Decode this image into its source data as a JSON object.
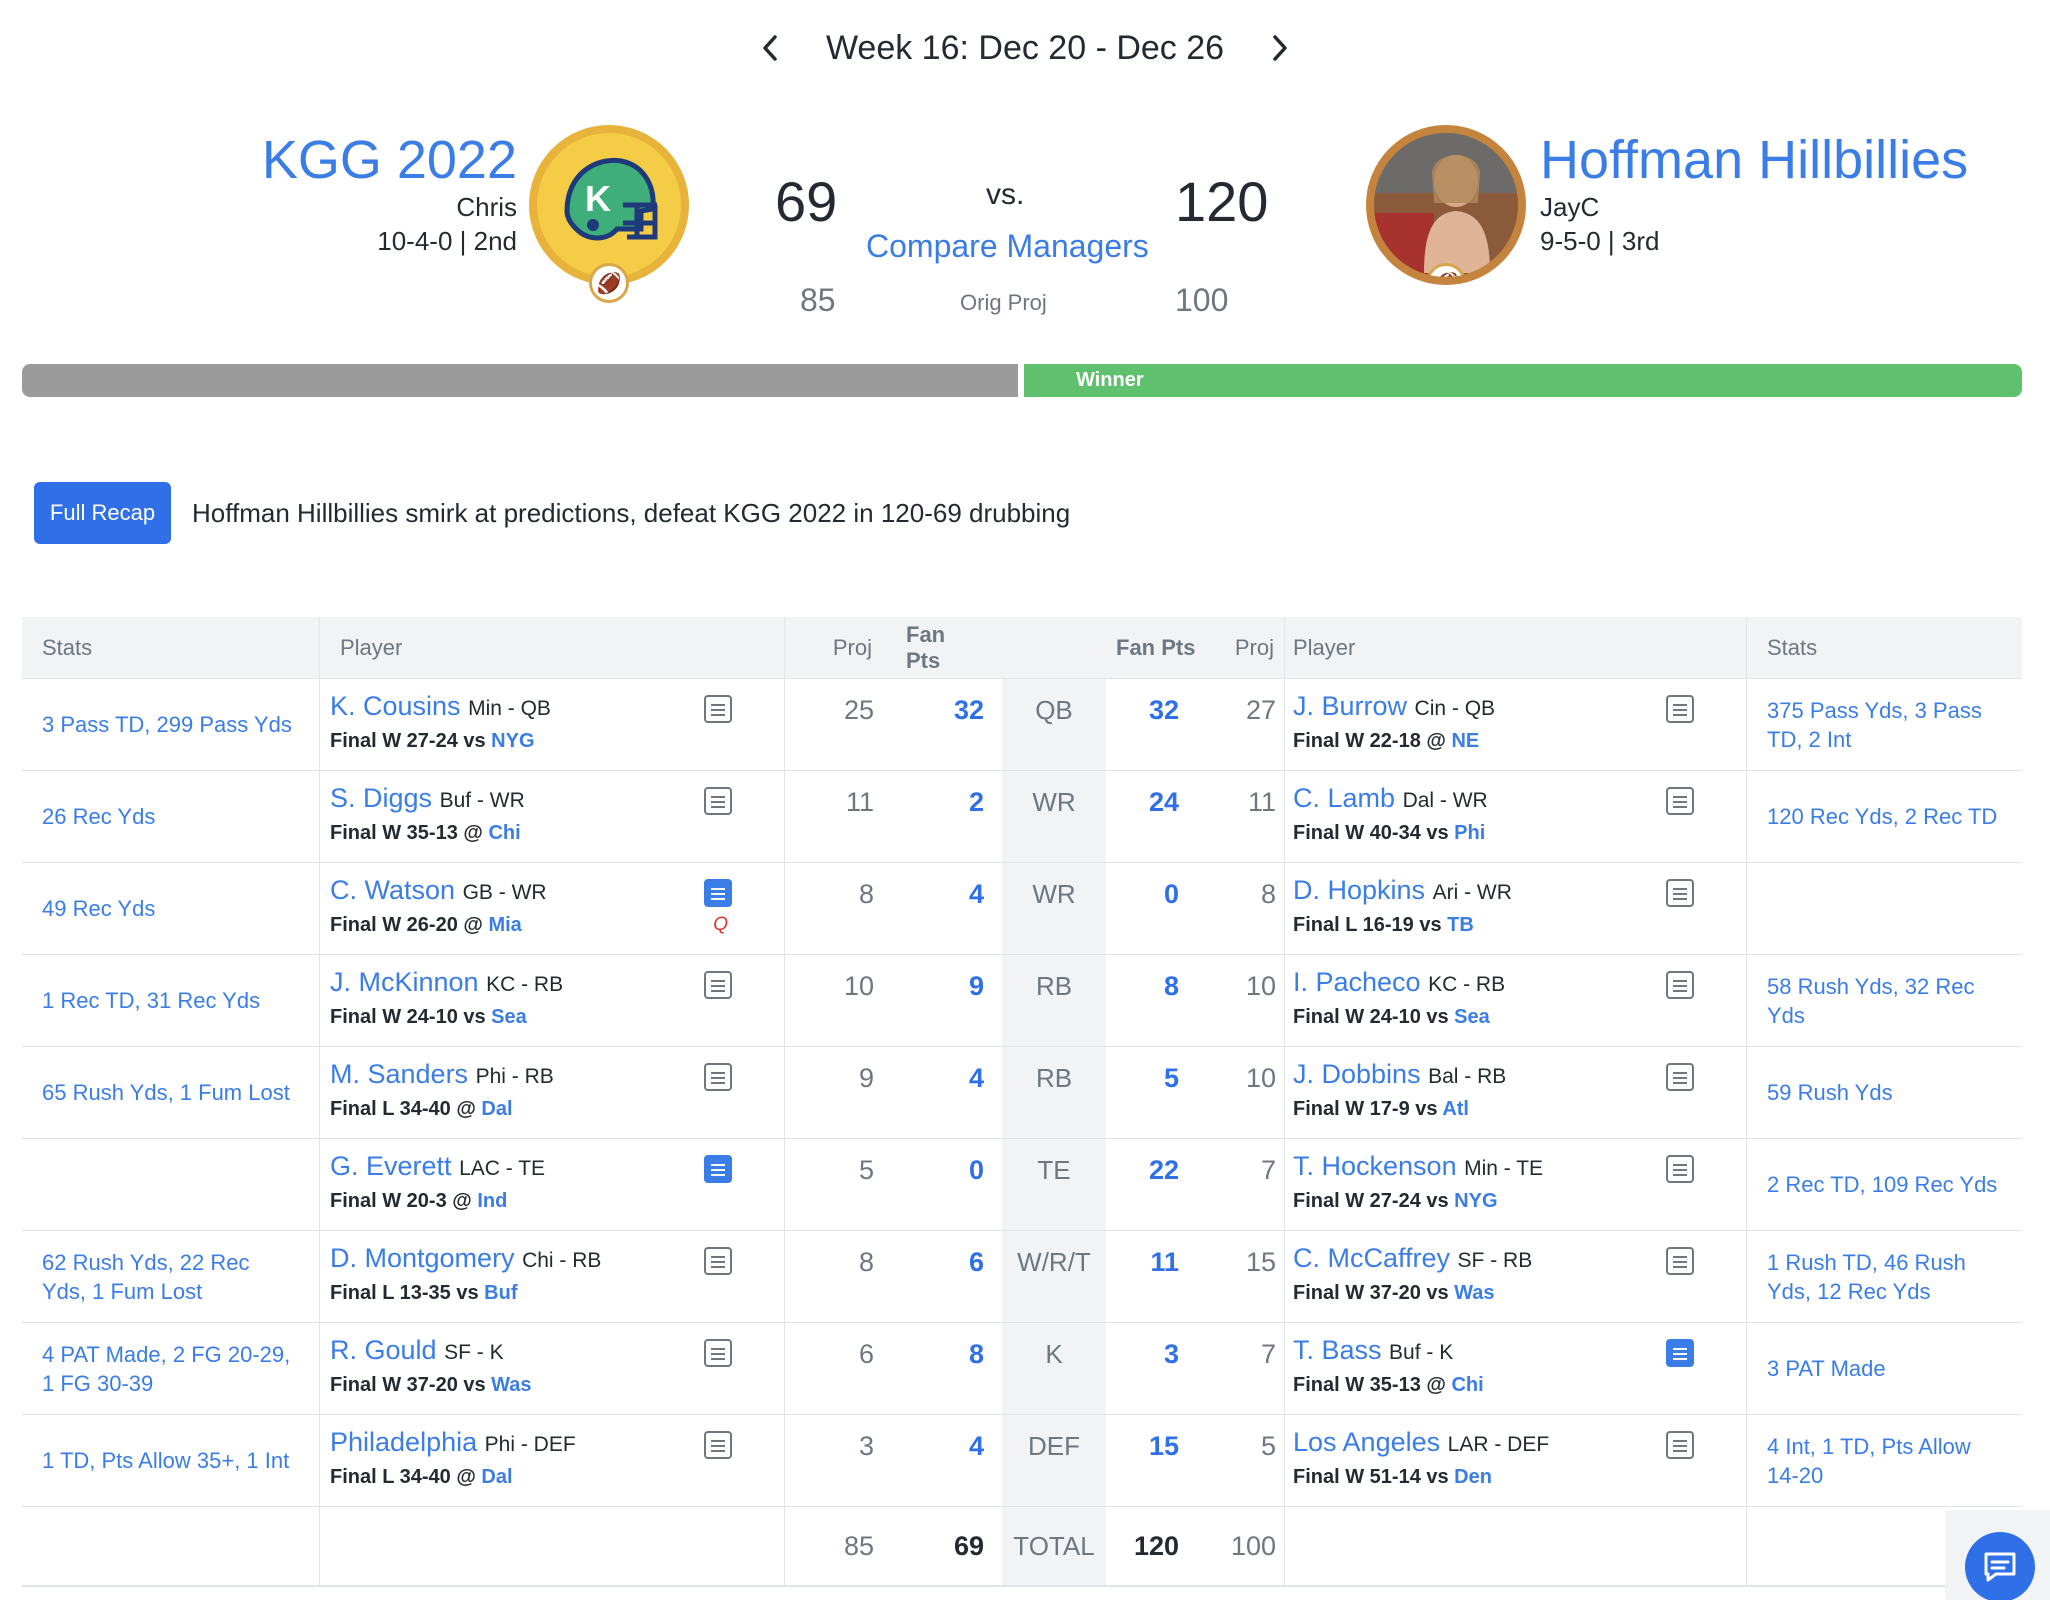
{
  "week": {
    "label": "Week 16: Dec 20 - Dec 26"
  },
  "left_team": {
    "name": "KGG 2022",
    "manager": "Chris",
    "record": "10-4-0 | 2nd",
    "score": "69",
    "orig_proj": "85",
    "logo_icon": "helmet-k-icon"
  },
  "right_team": {
    "name": "Hoffman Hillbillies",
    "manager": "JayC",
    "record": "9-5-0 | 3rd",
    "score": "120",
    "orig_proj": "100",
    "logo_icon": "manager-photo"
  },
  "matchup": {
    "vs": "vs.",
    "compare": "Compare Managers",
    "orig_proj_label": "Orig Proj",
    "winner_label": "Winner"
  },
  "recap": {
    "button": "Full Recap",
    "text": "Hoffman Hillbillies smirk at predictions, defeat KGG 2022 in 120-69 drubbing"
  },
  "colors": {
    "link": "#3a7de6",
    "winner_bar": "#5fc16d",
    "loser_bar": "#9b9b9b",
    "button": "#2f6fe8",
    "flag": "#e0342b"
  },
  "table": {
    "headers": {
      "stats": "Stats",
      "player": "Player",
      "proj": "Proj",
      "fan_pts": "Fan Pts"
    },
    "rows": [
      {
        "pos": "QB",
        "left": {
          "stats": "3 Pass TD, 299 Pass Yds",
          "name": "K. Cousins",
          "team": "Min - QB",
          "result": "Final W 27-24 vs ",
          "opp": "NYG",
          "proj": "25",
          "pts": "32",
          "note_active": false,
          "flag": ""
        },
        "right": {
          "stats": "375 Pass Yds, 3 Pass TD, 2 Int",
          "name": "J. Burrow",
          "team": "Cin - QB",
          "result": "Final W 22-18 @ ",
          "opp": "NE",
          "proj": "27",
          "pts": "32",
          "note_active": false
        }
      },
      {
        "pos": "WR",
        "left": {
          "stats": "26 Rec Yds",
          "name": "S. Diggs",
          "team": "Buf - WR",
          "result": "Final W 35-13 @ ",
          "opp": "Chi",
          "proj": "11",
          "pts": "2",
          "note_active": false,
          "flag": ""
        },
        "right": {
          "stats": "120 Rec Yds, 2 Rec TD",
          "name": "C. Lamb",
          "team": "Dal - WR",
          "result": "Final W 40-34 vs ",
          "opp": "Phi",
          "proj": "11",
          "pts": "24",
          "note_active": false
        }
      },
      {
        "pos": "WR",
        "left": {
          "stats": "49 Rec Yds",
          "name": "C. Watson",
          "team": "GB - WR",
          "result": "Final W 26-20 @ ",
          "opp": "Mia",
          "proj": "8",
          "pts": "4",
          "note_active": true,
          "flag": "Q"
        },
        "right": {
          "stats": "",
          "name": "D. Hopkins",
          "team": "Ari - WR",
          "result": "Final L 16-19 vs ",
          "opp": "TB",
          "proj": "8",
          "pts": "0",
          "note_active": false
        }
      },
      {
        "pos": "RB",
        "left": {
          "stats": "1 Rec TD, 31 Rec Yds",
          "name": "J. McKinnon",
          "team": "KC - RB",
          "result": "Final W 24-10 vs ",
          "opp": "Sea",
          "proj": "10",
          "pts": "9",
          "note_active": false,
          "flag": ""
        },
        "right": {
          "stats": "58 Rush Yds, 32 Rec Yds",
          "name": "I. Pacheco",
          "team": "KC - RB",
          "result": "Final W 24-10 vs ",
          "opp": "Sea",
          "proj": "10",
          "pts": "8",
          "note_active": false
        }
      },
      {
        "pos": "RB",
        "left": {
          "stats": "65 Rush Yds, 1 Fum Lost",
          "name": "M. Sanders",
          "team": "Phi - RB",
          "result": "Final L 34-40 @ ",
          "opp": "Dal",
          "proj": "9",
          "pts": "4",
          "note_active": false,
          "flag": ""
        },
        "right": {
          "stats": "59 Rush Yds",
          "name": "J. Dobbins",
          "team": "Bal - RB",
          "result": "Final W 17-9 vs ",
          "opp": "Atl",
          "proj": "10",
          "pts": "5",
          "note_active": false
        }
      },
      {
        "pos": "TE",
        "left": {
          "stats": "",
          "name": "G. Everett",
          "team": "LAC - TE",
          "result": "Final W 20-3 @ ",
          "opp": "Ind",
          "proj": "5",
          "pts": "0",
          "note_active": true,
          "flag": ""
        },
        "right": {
          "stats": "2 Rec TD, 109 Rec Yds",
          "name": "T. Hockenson",
          "team": "Min - TE",
          "result": "Final W 27-24 vs ",
          "opp": "NYG",
          "proj": "7",
          "pts": "22",
          "note_active": false
        }
      },
      {
        "pos": "W/R/T",
        "left": {
          "stats": "62 Rush Yds, 22 Rec Yds, 1 Fum Lost",
          "name": "D. Montgomery",
          "team": "Chi - RB",
          "result": "Final L 13-35 vs ",
          "opp": "Buf",
          "proj": "8",
          "pts": "6",
          "note_active": false,
          "flag": ""
        },
        "right": {
          "stats": "1 Rush TD, 46 Rush Yds, 12 Rec Yds",
          "name": "C. McCaffrey",
          "team": "SF - RB",
          "result": "Final W 37-20 vs ",
          "opp": "Was",
          "proj": "15",
          "pts": "11",
          "note_active": false
        }
      },
      {
        "pos": "K",
        "left": {
          "stats": "4 PAT Made, 2 FG 20-29, 1 FG 30-39",
          "name": "R. Gould",
          "team": "SF - K",
          "result": "Final W 37-20 vs ",
          "opp": "Was",
          "proj": "6",
          "pts": "8",
          "note_active": false,
          "flag": ""
        },
        "right": {
          "stats": "3 PAT Made",
          "name": "T. Bass",
          "team": "Buf - K",
          "result": "Final W 35-13 @ ",
          "opp": "Chi",
          "proj": "7",
          "pts": "3",
          "note_active": true
        }
      },
      {
        "pos": "DEF",
        "left": {
          "stats": "1 TD, Pts Allow 35+, 1 Int",
          "name": "Philadelphia",
          "team": "Phi - DEF",
          "result": "Final L 34-40 @ ",
          "opp": "Dal",
          "proj": "3",
          "pts": "4",
          "note_active": false,
          "flag": ""
        },
        "right": {
          "stats": "4 Int, 1 TD, Pts Allow 14-20",
          "name": "Los Angeles",
          "team": "LAR - DEF",
          "result": "Final W 51-14 vs ",
          "opp": "Den",
          "proj": "5",
          "pts": "15",
          "note_active": false
        }
      }
    ],
    "total": {
      "label": "TOTAL",
      "left_proj": "85",
      "left_pts": "69",
      "right_pts": "120",
      "right_proj": "100"
    }
  }
}
